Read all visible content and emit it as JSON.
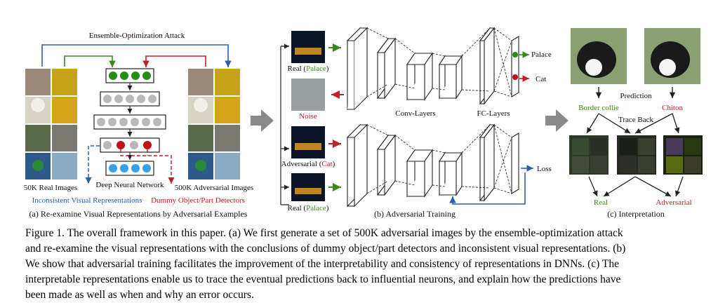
{
  "panel_a": {
    "ensemble_label": "Ensemble-Optimization Attack",
    "real_images_label": "50K Real Images",
    "dnn_label": "Deep Neural Network",
    "adv_images_label": "500K Adversarial Images",
    "inconsistent_label": "Inconsistent Visual Representations",
    "dummy_label": "Dummy Object/Part Detectors",
    "subcaption": "(a) Re-examine Visual Representations by Adversarial Examples"
  },
  "panel_b": {
    "real_label_prefix": "Real (",
    "real_label_class": "Palace",
    "real_label_suffix": ")",
    "noise_label": "Noise",
    "adv_label_prefix": "Adversarial (",
    "adv_label_class": "Cat",
    "adv_label_suffix": ")",
    "real2_label_prefix": "Real (",
    "real2_label_class": "Palace",
    "real2_label_suffix": ")",
    "conv_label": "Conv-Layers",
    "fc_label": "FC-Layers",
    "out_palace": "Palace",
    "out_cat": "Cat",
    "loss_label": "Loss",
    "subcaption": "(b) Adversarial Training"
  },
  "panel_c": {
    "prediction_label": "Prediction",
    "border_collie": "Border collie",
    "chiton": "Chiton",
    "trace_back": "Trace Back",
    "real_label": "Real",
    "adversarial_label": "Adversarial",
    "subcaption": "(c) Interpretation"
  },
  "caption": {
    "line1": "Figure 1. The overall framework in this paper. (a) We first generate a set of 500K adversarial images by the ensemble-optimization attack",
    "line2": "and re-examine the visual representations with the conclusions of dummy object/part detectors and inconsistent visual representations. (b)",
    "line3": "We show that adversarial training facilitates the improvement of the interpretability and consistency of representations in DNNs. (c) The",
    "line4": "interpretable representations enable us to trace the eventual predictions back to influential neurons, and explain how the predictions have",
    "line5": "been made as well as when and why an error occurs."
  },
  "colors": {
    "blue": "#2a5fb0",
    "green": "#3a8a1a",
    "red": "#c0202a",
    "node_gray": "#b8b8b8",
    "node_blue": "#3aa0e8",
    "node_green": "#2a8a1a",
    "node_red": "#c0101a"
  }
}
